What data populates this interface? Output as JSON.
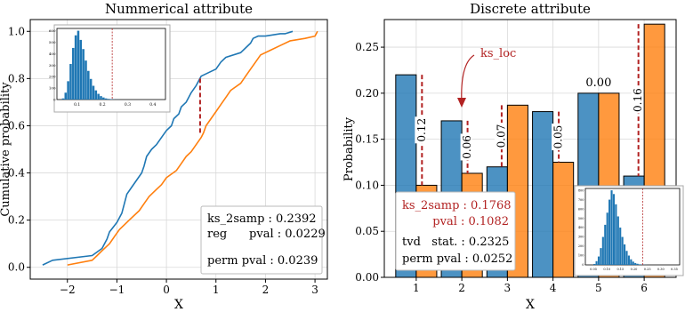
{
  "colors": {
    "blue": "#1f77b4",
    "orange": "#ff7f0e",
    "red": "#b22222",
    "grid": "#d9d9d9"
  },
  "chart_data": [
    {
      "type": "line",
      "title": "Nummerical attribute",
      "xlabel": "X",
      "ylabel": "Cumulative probability",
      "xlim": [
        -2.75,
        3.25
      ],
      "ylim": [
        -0.05,
        1.05
      ],
      "xticks": [
        "−2",
        "−1",
        "0",
        "1",
        "2",
        "3"
      ],
      "xtick_values": [
        -2,
        -1,
        0,
        1,
        2,
        3
      ],
      "yticks": [
        "0.0",
        "0.2",
        "0.4",
        "0.6",
        "0.8",
        "1.0"
      ],
      "ytick_values": [
        0,
        0.2,
        0.4,
        0.6,
        0.8,
        1.0
      ],
      "grid": true,
      "series": [
        {
          "color": "#1f77b4",
          "x": [
            -2.5,
            -2.3,
            -1.5,
            -1.3,
            -1.2,
            -1.15,
            -1.0,
            -0.9,
            -0.85,
            -0.8,
            -0.7,
            -0.6,
            -0.5,
            -0.45,
            -0.4,
            -0.3,
            -0.2,
            -0.1,
            0.0,
            0.1,
            0.15,
            0.25,
            0.3,
            0.4,
            0.45,
            0.5,
            0.6,
            0.65,
            0.7,
            1.0,
            1.1,
            1.2,
            1.5,
            1.7,
            1.75,
            1.85,
            2.0,
            2.3,
            2.4,
            2.55
          ],
          "y": [
            0.01,
            0.03,
            0.05,
            0.08,
            0.12,
            0.15,
            0.19,
            0.23,
            0.27,
            0.31,
            0.34,
            0.37,
            0.4,
            0.43,
            0.47,
            0.5,
            0.52,
            0.55,
            0.58,
            0.6,
            0.63,
            0.65,
            0.68,
            0.7,
            0.72,
            0.74,
            0.77,
            0.79,
            0.81,
            0.84,
            0.87,
            0.89,
            0.91,
            0.95,
            0.97,
            0.98,
            0.98,
            0.99,
            0.99,
            1.0
          ]
        },
        {
          "color": "#ff7f0e",
          "x": [
            -2.0,
            -1.5,
            -1.4,
            -1.3,
            -1.15,
            -1.05,
            -0.95,
            -0.75,
            -0.55,
            -0.45,
            -0.35,
            -0.2,
            -0.1,
            0.0,
            0.2,
            0.3,
            0.4,
            0.5,
            0.6,
            0.7,
            0.75,
            0.8,
            0.9,
            1.0,
            1.1,
            1.2,
            1.3,
            1.5,
            1.6,
            1.7,
            1.8,
            1.9,
            2.1,
            2.3,
            2.5,
            2.8,
            3.0,
            3.05
          ],
          "y": [
            0.01,
            0.03,
            0.05,
            0.07,
            0.1,
            0.13,
            0.16,
            0.2,
            0.24,
            0.27,
            0.3,
            0.33,
            0.35,
            0.38,
            0.41,
            0.44,
            0.47,
            0.49,
            0.52,
            0.55,
            0.57,
            0.6,
            0.63,
            0.66,
            0.69,
            0.72,
            0.75,
            0.78,
            0.81,
            0.84,
            0.87,
            0.9,
            0.92,
            0.94,
            0.96,
            0.97,
            0.98,
            1.0
          ]
        }
      ],
      "annotations": {
        "ks_line_x": 0.68,
        "ks_line_y": [
          0.57,
          0.81
        ]
      },
      "stats_box": {
        "line1": "ks_2samp : 0.2392",
        "line2": "reg      pval : 0.0229",
        "line3": "perm pval : 0.0239"
      },
      "inset": {
        "type": "histogram",
        "xticks": [
          "0.1",
          "0.2",
          "0.3",
          "0.4"
        ],
        "xtick_values": [
          0.1,
          0.2,
          0.3,
          0.4
        ],
        "yticks": [
          "0",
          "100",
          "200",
          "300",
          "400",
          "500",
          "600"
        ],
        "ytick_values": [
          0,
          100,
          200,
          300,
          400,
          500,
          600
        ],
        "xlim": [
          0.02,
          0.45
        ],
        "ylim": [
          0,
          620
        ],
        "marker_x": 0.239,
        "bin_start": 0.04,
        "bin_width": 0.01,
        "counts": [
          10,
          60,
          160,
          310,
          450,
          560,
          600,
          520,
          440,
          340,
          250,
          180,
          120,
          80,
          50,
          30,
          18,
          10,
          6,
          4,
          2,
          1,
          1
        ]
      }
    },
    {
      "type": "bar",
      "title": "Discrete attribute",
      "xlabel": "X",
      "ylabel": "Probability",
      "categories": [
        "1",
        "2",
        "3",
        "4",
        "5",
        "6"
      ],
      "ylim": [
        0,
        0.28
      ],
      "yticks": [
        "0.00",
        "0.05",
        "0.10",
        "0.15",
        "0.20",
        "0.25"
      ],
      "ytick_values": [
        0,
        0.05,
        0.1,
        0.15,
        0.2,
        0.25
      ],
      "grid": true,
      "series": [
        {
          "color": "#1f77b4",
          "values": [
            0.22,
            0.17,
            0.12,
            0.18,
            0.2,
            0.11
          ]
        },
        {
          "color": "#ff7f0e",
          "values": [
            0.1,
            0.113,
            0.187,
            0.125,
            0.2,
            0.275
          ]
        }
      ],
      "diff_labels": [
        "0.12",
        "0.06",
        "0.07",
        "0.05",
        "0.00",
        "0.16"
      ],
      "annotation_label": "ks_loc",
      "stats_box": {
        "line1": "ks_2samp : 0.1768",
        "line2": "pval : 0.1082",
        "line3": "tvd   stat. : 0.2325",
        "line4": "perm pval : 0.0252"
      },
      "inset": {
        "type": "histogram",
        "xticks": [
          "0.05",
          "0.10",
          "0.15",
          "0.20",
          "0.25",
          "0.30",
          "0.35"
        ],
        "xtick_values": [
          0.05,
          0.1,
          0.15,
          0.2,
          0.25,
          0.3,
          0.35
        ],
        "yticks": [
          "0",
          "100",
          "200",
          "300",
          "400",
          "500",
          "600",
          "700",
          "800"
        ],
        "ytick_values": [
          0,
          100,
          200,
          300,
          400,
          500,
          600,
          700,
          800
        ],
        "xlim": [
          0.02,
          0.37
        ],
        "ylim": [
          0,
          820
        ],
        "marker_x": 0.2325,
        "bin_start": 0.05,
        "bin_width": 0.008,
        "counts": [
          10,
          40,
          90,
          180,
          300,
          430,
          560,
          700,
          800,
          760,
          650,
          520,
          400,
          300,
          220,
          150,
          100,
          60,
          35,
          20,
          12,
          6,
          3,
          2,
          1
        ]
      }
    }
  ]
}
